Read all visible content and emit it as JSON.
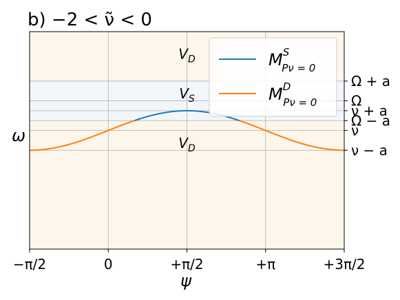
{
  "chart_data": {
    "type": "line",
    "title": "b) −2 < ν̃ < 0",
    "xlabel": "ψ",
    "ylabel": "ω",
    "xlim": [
      -1.5708,
      4.7124
    ],
    "ylim": [
      -2.8,
      1.6
    ],
    "grid": true,
    "legend_position": "top-right",
    "x_ticks": [
      {
        "value": -1.5708,
        "label": "−π/2"
      },
      {
        "value": 0,
        "label": "0"
      },
      {
        "value": 1.5708,
        "label": "+π/2"
      },
      {
        "value": 3.1416,
        "label": "+π"
      },
      {
        "value": 4.7124,
        "label": "+3π/2"
      }
    ],
    "right_ticks": [
      {
        "value": 0.6,
        "label": "Ω + a"
      },
      {
        "value": 0.2,
        "label": "Ω"
      },
      {
        "value": 0.0,
        "label": "ν + a"
      },
      {
        "value": -0.2,
        "label": "Ω − a"
      },
      {
        "value": -0.4,
        "label": "ν"
      },
      {
        "value": -0.8,
        "label": "ν − a"
      }
    ],
    "regions": [
      {
        "label": "V_D",
        "y_min": 0.6,
        "y_max": 1.6,
        "color": "#fdf6ea",
        "label_x": 1.5708,
        "label_y": 1.05
      },
      {
        "label": "V_S",
        "y_min": -0.2,
        "y_max": 0.6,
        "color": "#f2f6fb",
        "label_x": 1.5708,
        "label_y": 0.25
      },
      {
        "label": "V_D",
        "y_min": -2.8,
        "y_max": -0.2,
        "color": "#fdf6ea",
        "label_x": 1.5708,
        "label_y": -0.75
      }
    ],
    "curve": {
      "form": "nu + a*sin(psi)",
      "nu": -0.4,
      "a": 0.4,
      "threshold": -0.2
    },
    "series": [
      {
        "name": "M^S_{Pν=0}",
        "label_main": "M",
        "label_sup": "S",
        "label_sub": "Pν = 0",
        "color": "#1f77b4",
        "condition": "above threshold"
      },
      {
        "name": "M^D_{Pν=0}",
        "label_main": "M",
        "label_sup": "D",
        "label_sub": "Pν = 0",
        "color": "#ff7f0e",
        "condition": "below threshold"
      }
    ]
  }
}
